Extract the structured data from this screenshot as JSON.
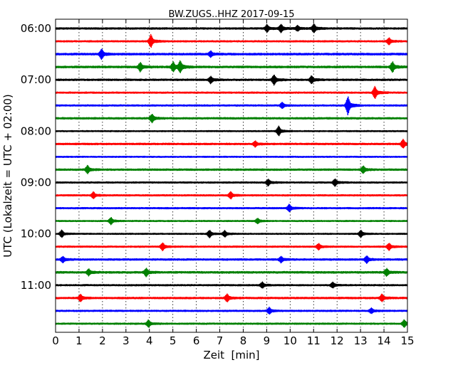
{
  "chart_data": {
    "type": "line",
    "title": "BW.ZUGS..HHZ 2017-09-15",
    "xlabel": "Zeit  [min]",
    "ylabel": "UTC (Lokalzeit = UTC + 02:00)",
    "xlim": [
      0,
      15
    ],
    "x_ticks": [
      "0",
      "1",
      "2",
      "3",
      "4",
      "5",
      "6",
      "7",
      "8",
      "9",
      "10",
      "11",
      "12",
      "13",
      "14",
      "15"
    ],
    "y_ticks": [
      {
        "label": "06:00",
        "trace_index": 0
      },
      {
        "label": "07:00",
        "trace_index": 4
      },
      {
        "label": "08:00",
        "trace_index": 8
      },
      {
        "label": "09:00",
        "trace_index": 12
      },
      {
        "label": "10:00",
        "trace_index": 16
      },
      {
        "label": "11:00",
        "trace_index": 20
      }
    ],
    "grid": "vertical-dotted",
    "trace_colors": [
      "#000000",
      "#ff0000",
      "#0000ff",
      "#008000"
    ],
    "traces": [
      {
        "start": "06:00",
        "color": "#000000",
        "amplitude": 0.4,
        "events": [
          {
            "x": 9.0,
            "a": 1.6
          },
          {
            "x": 9.6,
            "a": 1.8
          },
          {
            "x": 10.3,
            "a": 1.2
          },
          {
            "x": 11.0,
            "a": 1.9
          }
        ]
      },
      {
        "start": "06:15",
        "color": "#ff0000",
        "amplitude": 0.35,
        "events": [
          {
            "x": 4.05,
            "a": 3.0
          },
          {
            "x": 14.2,
            "a": 1.5
          }
        ]
      },
      {
        "start": "06:30",
        "color": "#0000ff",
        "amplitude": 0.45,
        "events": [
          {
            "x": 1.95,
            "a": 2.3
          },
          {
            "x": 6.6,
            "a": 1.3
          }
        ]
      },
      {
        "start": "06:45",
        "color": "#008000",
        "amplitude": 0.45,
        "events": [
          {
            "x": 3.6,
            "a": 2.0
          },
          {
            "x": 5.0,
            "a": 2.2
          },
          {
            "x": 5.3,
            "a": 2.4
          },
          {
            "x": 14.35,
            "a": 2.3
          }
        ]
      },
      {
        "start": "07:00",
        "color": "#000000",
        "amplitude": 0.4,
        "events": [
          {
            "x": 6.6,
            "a": 1.5
          },
          {
            "x": 9.3,
            "a": 2.3
          },
          {
            "x": 10.9,
            "a": 1.7
          }
        ]
      },
      {
        "start": "07:15",
        "color": "#ff0000",
        "amplitude": 0.35,
        "events": [
          {
            "x": 13.6,
            "a": 2.8
          }
        ]
      },
      {
        "start": "07:30",
        "color": "#0000ff",
        "amplitude": 0.35,
        "events": [
          {
            "x": 9.65,
            "a": 1.3
          },
          {
            "x": 12.45,
            "a": 4.2
          }
        ]
      },
      {
        "start": "07:45",
        "color": "#008000",
        "amplitude": 0.4,
        "events": [
          {
            "x": 4.1,
            "a": 2.0
          }
        ]
      },
      {
        "start": "08:00",
        "color": "#000000",
        "amplitude": 0.3,
        "events": [
          {
            "x": 9.5,
            "a": 2.2
          }
        ]
      },
      {
        "start": "08:15",
        "color": "#ff0000",
        "amplitude": 0.4,
        "events": [
          {
            "x": 8.5,
            "a": 1.2
          },
          {
            "x": 14.8,
            "a": 2.0
          }
        ]
      },
      {
        "start": "08:30",
        "color": "#0000ff",
        "amplitude": 0.3,
        "events": []
      },
      {
        "start": "08:45",
        "color": "#008000",
        "amplitude": 0.4,
        "events": [
          {
            "x": 1.35,
            "a": 1.8
          },
          {
            "x": 13.1,
            "a": 1.6
          }
        ]
      },
      {
        "start": "09:00",
        "color": "#000000",
        "amplitude": 0.35,
        "events": [
          {
            "x": 9.05,
            "a": 1.4
          },
          {
            "x": 11.9,
            "a": 1.6
          }
        ]
      },
      {
        "start": "09:15",
        "color": "#ff0000",
        "amplitude": 0.35,
        "events": [
          {
            "x": 1.6,
            "a": 1.4
          },
          {
            "x": 7.45,
            "a": 1.6
          }
        ]
      },
      {
        "start": "09:30",
        "color": "#0000ff",
        "amplitude": 0.35,
        "events": [
          {
            "x": 9.95,
            "a": 1.6
          }
        ]
      },
      {
        "start": "09:45",
        "color": "#008000",
        "amplitude": 0.3,
        "events": [
          {
            "x": 2.35,
            "a": 1.6
          },
          {
            "x": 8.6,
            "a": 1.2
          }
        ]
      },
      {
        "start": "10:00",
        "color": "#000000",
        "amplitude": 0.3,
        "events": [
          {
            "x": 0.25,
            "a": 1.6
          },
          {
            "x": 6.55,
            "a": 1.7
          },
          {
            "x": 7.2,
            "a": 1.4
          },
          {
            "x": 13.0,
            "a": 1.6
          }
        ]
      },
      {
        "start": "10:15",
        "color": "#ff0000",
        "amplitude": 0.35,
        "events": [
          {
            "x": 4.55,
            "a": 1.7
          },
          {
            "x": 11.2,
            "a": 1.4
          },
          {
            "x": 14.2,
            "a": 1.6
          }
        ]
      },
      {
        "start": "10:30",
        "color": "#0000ff",
        "amplitude": 0.4,
        "events": [
          {
            "x": 0.3,
            "a": 1.3
          },
          {
            "x": 9.6,
            "a": 1.3
          },
          {
            "x": 13.25,
            "a": 1.6
          }
        ]
      },
      {
        "start": "10:45",
        "color": "#008000",
        "amplitude": 0.45,
        "events": [
          {
            "x": 1.4,
            "a": 1.4
          },
          {
            "x": 3.85,
            "a": 1.8
          },
          {
            "x": 14.1,
            "a": 1.6
          }
        ]
      },
      {
        "start": "11:00",
        "color": "#000000",
        "amplitude": 0.35,
        "events": [
          {
            "x": 8.8,
            "a": 1.3
          },
          {
            "x": 11.8,
            "a": 1.3
          }
        ]
      },
      {
        "start": "11:15",
        "color": "#ff0000",
        "amplitude": 0.4,
        "events": [
          {
            "x": 1.05,
            "a": 1.6
          },
          {
            "x": 7.3,
            "a": 1.8
          },
          {
            "x": 13.9,
            "a": 1.6
          }
        ]
      },
      {
        "start": "11:30",
        "color": "#0000ff",
        "amplitude": 0.35,
        "events": [
          {
            "x": 9.1,
            "a": 1.5
          },
          {
            "x": 13.45,
            "a": 1.2
          }
        ]
      },
      {
        "start": "11:45",
        "color": "#008000",
        "amplitude": 0.35,
        "events": [
          {
            "x": 3.95,
            "a": 1.5
          },
          {
            "x": 14.85,
            "a": 1.6
          }
        ]
      }
    ]
  }
}
